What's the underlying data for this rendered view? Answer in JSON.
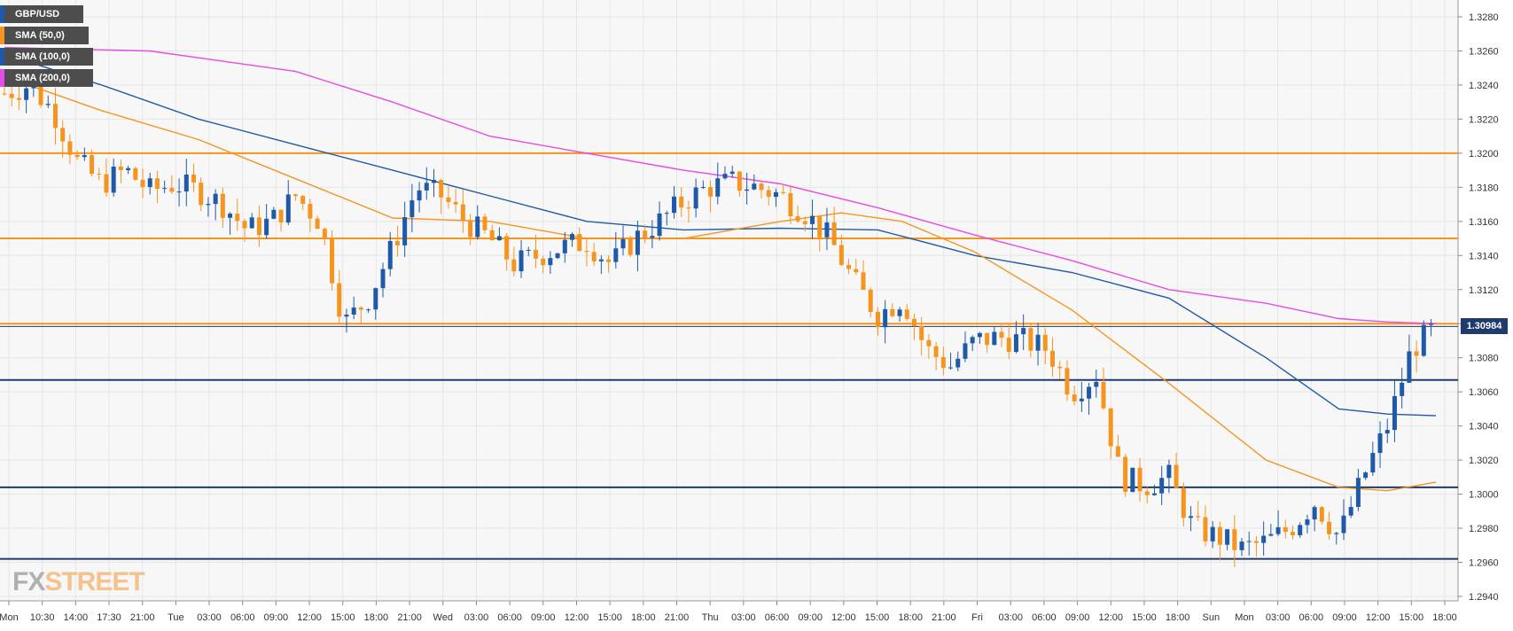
{
  "legend": [
    {
      "label": "GBP/USD",
      "color": "#1e5aa8"
    },
    {
      "label": "SMA (50,0)",
      "color": "#f5951f"
    },
    {
      "label": "SMA (100,0)",
      "color": "#1e5aa8"
    },
    {
      "label": "SMA (200,0)",
      "color": "#e64be6"
    }
  ],
  "logo": {
    "fx": "FX",
    "street": "STREET"
  },
  "current_price_label": "1.30984",
  "colors": {
    "bull": "#1e5aa8",
    "bear": "#f5951f",
    "sma50": "#f5951f",
    "sma100": "#1e5aa8",
    "sma200": "#e64be6",
    "grid": "#e6e6e6"
  },
  "chart_data": {
    "type": "candlestick",
    "symbol": "GBP/USD",
    "ylim": [
      1.293,
      1.329
    ],
    "y_ticks": [
      "1.3280",
      "1.3260",
      "1.3240",
      "1.3220",
      "1.3200",
      "1.3180",
      "1.3160",
      "1.3140",
      "1.3120",
      "1.3100",
      "1.3080",
      "1.3060",
      "1.3040",
      "1.3020",
      "1.3000",
      "1.2980",
      "1.2960",
      "1.2940"
    ],
    "x_ticks": [
      "Mon",
      "10:30",
      "14:00",
      "17:30",
      "21:00",
      "Tue",
      "03:00",
      "06:00",
      "09:00",
      "12:00",
      "15:00",
      "18:00",
      "21:00",
      "Wed",
      "03:00",
      "06:00",
      "09:00",
      "12:00",
      "15:00",
      "18:00",
      "21:00",
      "Thu",
      "03:00",
      "06:00",
      "09:00",
      "12:00",
      "15:00",
      "18:00",
      "21:00",
      "Fri",
      "03:00",
      "06:00",
      "09:00",
      "12:00",
      "15:00",
      "18:00",
      "Sun",
      "Mon",
      "03:00",
      "06:00",
      "09:00",
      "12:00",
      "15:00",
      "18:00"
    ],
    "horizontal_levels": [
      {
        "value": 1.32,
        "color": "#f5951f"
      },
      {
        "value": 1.315,
        "color": "#f5951f"
      },
      {
        "value": 1.31,
        "color": "#f5951f"
      },
      {
        "value": 1.3067,
        "color": "#1f3a6e"
      },
      {
        "value": 1.3004,
        "color": "#1f3a6e"
      },
      {
        "value": 1.2962,
        "color": "#1f3a6e"
      }
    ],
    "current_price": 1.30984,
    "close_path": [
      [
        0,
        1.3235
      ],
      [
        10,
        1.324
      ],
      [
        20,
        1.3225
      ],
      [
        30,
        1.3195
      ],
      [
        40,
        1.3182
      ],
      [
        50,
        1.319
      ],
      [
        60,
        1.3178
      ],
      [
        70,
        1.3182
      ],
      [
        80,
        1.3178
      ],
      [
        90,
        1.317
      ],
      [
        100,
        1.3155
      ],
      [
        110,
        1.316
      ],
      [
        120,
        1.3175
      ],
      [
        130,
        1.316
      ],
      [
        140,
        1.31
      ],
      [
        150,
        1.3115
      ],
      [
        160,
        1.3145
      ],
      [
        170,
        1.318
      ],
      [
        180,
        1.3175
      ],
      [
        190,
        1.316
      ],
      [
        200,
        1.315
      ],
      [
        210,
        1.3135
      ],
      [
        220,
        1.314
      ],
      [
        230,
        1.3145
      ],
      [
        240,
        1.3148
      ],
      [
        250,
        1.3135
      ],
      [
        260,
        1.315
      ],
      [
        270,
        1.316
      ],
      [
        280,
        1.3172
      ],
      [
        290,
        1.318
      ],
      [
        300,
        1.3183
      ],
      [
        310,
        1.318
      ],
      [
        320,
        1.3175
      ],
      [
        330,
        1.3165
      ],
      [
        340,
        1.315
      ],
      [
        350,
        1.3125
      ],
      [
        360,
        1.3105
      ],
      [
        370,
        1.3115
      ],
      [
        380,
        1.3085
      ],
      [
        390,
        1.3075
      ],
      [
        400,
        1.309
      ],
      [
        410,
        1.3092
      ],
      [
        420,
        1.309
      ],
      [
        430,
        1.3085
      ],
      [
        440,
        1.306
      ],
      [
        450,
        1.307
      ],
      [
        460,
        1.301
      ],
      [
        470,
        1.3005
      ],
      [
        480,
        1.301
      ],
      [
        490,
        1.298
      ],
      [
        500,
        1.2975
      ],
      [
        510,
        1.2968
      ],
      [
        520,
        1.2972
      ],
      [
        530,
        1.298
      ],
      [
        540,
        1.2995
      ],
      [
        550,
        1.2975
      ],
      [
        560,
        1.301
      ],
      [
        570,
        1.304
      ],
      [
        580,
        1.3085
      ],
      [
        590,
        1.3098
      ]
    ],
    "sma_50_path": [
      [
        0,
        1.3245
      ],
      [
        40,
        1.3225
      ],
      [
        80,
        1.3208
      ],
      [
        120,
        1.3185
      ],
      [
        160,
        1.3162
      ],
      [
        200,
        1.316
      ],
      [
        240,
        1.315
      ],
      [
        280,
        1.315
      ],
      [
        320,
        1.316
      ],
      [
        345,
        1.3165
      ],
      [
        370,
        1.316
      ],
      [
        400,
        1.3142
      ],
      [
        440,
        1.3108
      ],
      [
        480,
        1.3065
      ],
      [
        520,
        1.302
      ],
      [
        550,
        1.3004
      ],
      [
        570,
        1.3002
      ],
      [
        590,
        1.3007
      ]
    ],
    "sma_100_path": [
      [
        0,
        1.3258
      ],
      [
        40,
        1.324
      ],
      [
        80,
        1.322
      ],
      [
        120,
        1.3205
      ],
      [
        160,
        1.319
      ],
      [
        200,
        1.3175
      ],
      [
        240,
        1.316
      ],
      [
        280,
        1.3155
      ],
      [
        320,
        1.3156
      ],
      [
        360,
        1.3155
      ],
      [
        400,
        1.314
      ],
      [
        440,
        1.313
      ],
      [
        480,
        1.3115
      ],
      [
        520,
        1.308
      ],
      [
        550,
        1.305
      ],
      [
        570,
        1.3047
      ],
      [
        590,
        1.3046
      ]
    ],
    "sma_200_path": [
      [
        0,
        1.3262
      ],
      [
        60,
        1.326
      ],
      [
        120,
        1.3248
      ],
      [
        160,
        1.323
      ],
      [
        200,
        1.321
      ],
      [
        240,
        1.32
      ],
      [
        280,
        1.319
      ],
      [
        320,
        1.3182
      ],
      [
        360,
        1.3168
      ],
      [
        400,
        1.3152
      ],
      [
        440,
        1.3137
      ],
      [
        480,
        1.312
      ],
      [
        520,
        1.3112
      ],
      [
        550,
        1.3103
      ],
      [
        570,
        1.3101
      ],
      [
        590,
        1.31
      ]
    ]
  }
}
